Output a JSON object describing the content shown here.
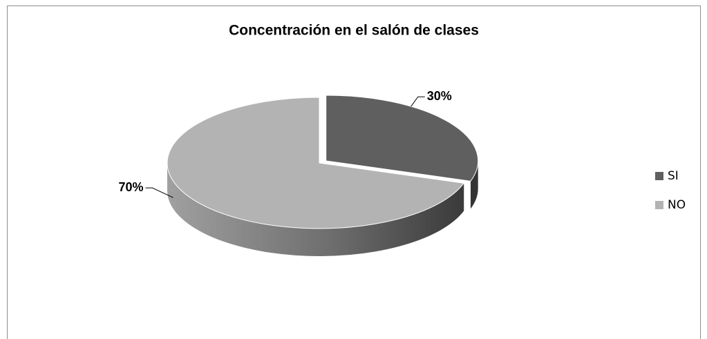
{
  "chart_data": {
    "type": "pie",
    "title": "Concentración en el salón de clases",
    "categories": [
      "SI",
      "NO"
    ],
    "values": [
      30,
      70
    ],
    "value_labels": [
      "30%",
      "70%"
    ],
    "colors": [
      "#5f5f5f",
      "#b3b3b3"
    ],
    "legend": "right"
  }
}
